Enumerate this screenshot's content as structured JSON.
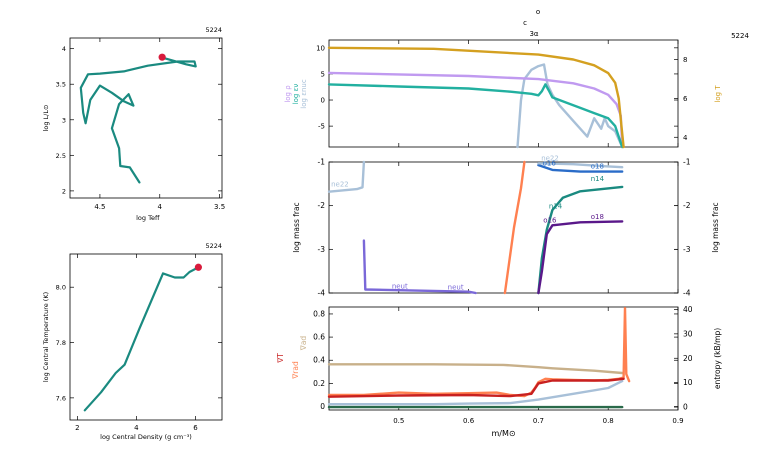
{
  "model_number": "5224",
  "header": {
    "mark_o": "o",
    "mark_c": "c",
    "mark_3a": "3α"
  },
  "colors": {
    "teal": "#1a8a80",
    "red_dot": "#d81b3c",
    "violet": "#c09af0",
    "teal_sig": "#22b0a0",
    "lightblue": "#a8c0d8",
    "gold": "#d4a020",
    "blue": "#2a6cc8",
    "purple": "#5a188a",
    "orange": "#ff8050",
    "tan": "#c8b08a",
    "medium_purple": "#7a68d8",
    "dark_green": "#2a6a4a",
    "red_label": "#c82020"
  },
  "chart_data": [
    {
      "type": "line",
      "id": "hr",
      "xlabel": "log Teff",
      "ylabel": "log L/L⊙",
      "model": "5224",
      "xlim": [
        4.75,
        3.48
      ],
      "ylim": [
        1.9,
        4.15
      ],
      "xticks": [
        {
          "v": 4.5,
          "l": "4.5"
        },
        {
          "v": 4.0,
          "l": "4"
        },
        {
          "v": 3.5,
          "l": "3.5"
        }
      ],
      "yticks": [
        {
          "v": 2,
          "l": "2"
        },
        {
          "v": 2.5,
          "l": "2.5"
        },
        {
          "v": 3,
          "l": "3"
        },
        {
          "v": 3.5,
          "l": "3.5"
        },
        {
          "v": 4,
          "l": "4"
        }
      ],
      "series": [
        {
          "color": "teal",
          "points": [
            [
              4.17,
              2.12
            ],
            [
              4.25,
              2.33
            ],
            [
              4.33,
              2.35
            ],
            [
              4.34,
              2.6
            ],
            [
              4.4,
              2.88
            ],
            [
              4.34,
              3.22
            ],
            [
              4.26,
              3.36
            ],
            [
              4.24,
              3.28
            ],
            [
              4.22,
              3.2
            ],
            [
              4.3,
              3.26
            ],
            [
              4.4,
              3.38
            ],
            [
              4.5,
              3.48
            ],
            [
              4.58,
              3.28
            ],
            [
              4.62,
              2.95
            ],
            [
              4.64,
              3.1
            ],
            [
              4.66,
              3.45
            ],
            [
              4.6,
              3.64
            ],
            [
              4.5,
              3.65
            ],
            [
              4.3,
              3.68
            ],
            [
              4.1,
              3.76
            ],
            [
              3.85,
              3.82
            ],
            [
              3.71,
              3.82
            ],
            [
              3.7,
              3.75
            ],
            [
              3.78,
              3.78
            ],
            [
              3.95,
              3.86
            ]
          ]
        }
      ],
      "marker": {
        "x": 3.98,
        "y": 3.88,
        "color": "red_dot"
      }
    },
    {
      "type": "line",
      "id": "central",
      "xlabel": "log Central Density (g cm⁻³)",
      "ylabel": "log Central Temperature (K)",
      "model": "5224",
      "xlim": [
        1.75,
        6.9
      ],
      "ylim": [
        7.52,
        8.12
      ],
      "xticks": [
        {
          "v": 2,
          "l": "2"
        },
        {
          "v": 4,
          "l": "4"
        },
        {
          "v": 6,
          "l": "6"
        }
      ],
      "yticks": [
        {
          "v": 7.6,
          "l": "7.6"
        },
        {
          "v": 7.8,
          "l": "7.8"
        },
        {
          "v": 8.0,
          "l": "8.0"
        }
      ],
      "series": [
        {
          "color": "teal",
          "points": [
            [
              2.25,
              7.555
            ],
            [
              2.8,
              7.62
            ],
            [
              3.3,
              7.69
            ],
            [
              3.6,
              7.72
            ],
            [
              4.1,
              7.85
            ],
            [
              4.9,
              8.05
            ],
            [
              5.3,
              8.035
            ],
            [
              5.6,
              8.035
            ],
            [
              5.8,
              8.055
            ],
            [
              6.1,
              8.072
            ]
          ]
        }
      ],
      "marker": {
        "x": 6.1,
        "y": 8.072,
        "color": "red_dot"
      }
    },
    {
      "type": "line",
      "id": "struct",
      "xlim": [
        0.4,
        0.9
      ],
      "ylim": [
        -9,
        11.5
      ],
      "yticks": [
        {
          "v": 10,
          "l": "10"
        },
        {
          "v": 5,
          "l": "5"
        },
        {
          "v": 0,
          "l": "0"
        },
        {
          "v": -5,
          "l": "-5"
        }
      ],
      "right_ylim": [
        3.5,
        9.0
      ],
      "right_yticks": [
        {
          "v": 8,
          "l": "8"
        },
        {
          "v": 6,
          "l": "6"
        },
        {
          "v": 4,
          "l": "4"
        }
      ],
      "left_labels": [
        {
          "text": "log ρ",
          "color": "violet"
        },
        {
          "text": "log εν",
          "color": "teal_sig"
        },
        {
          "text": "log εnuc",
          "color": "lightblue"
        }
      ],
      "right_label": {
        "text": "log T",
        "color": "gold"
      },
      "series": [
        {
          "color": "lightblue",
          "points": [
            [
              0.67,
              -9
            ],
            [
              0.675,
              0
            ],
            [
              0.68,
              4
            ],
            [
              0.69,
              5.8
            ],
            [
              0.7,
              6.5
            ],
            [
              0.708,
              6.8
            ],
            [
              0.713,
              3
            ],
            [
              0.72,
              1
            ],
            [
              0.73,
              -1
            ],
            [
              0.75,
              -4
            ],
            [
              0.77,
              -7
            ],
            [
              0.78,
              -3.5
            ],
            [
              0.79,
              -5.5
            ],
            [
              0.795,
              -3.5
            ],
            [
              0.8,
              -5
            ],
            [
              0.81,
              -6
            ],
            [
              0.82,
              -9
            ]
          ]
        },
        {
          "color": "violet",
          "points": [
            [
              0.4,
              5.2
            ],
            [
              0.6,
              4.6
            ],
            [
              0.7,
              4.0
            ],
            [
              0.75,
              3.2
            ],
            [
              0.78,
              2.2
            ],
            [
              0.8,
              1.0
            ],
            [
              0.812,
              -0.8
            ],
            [
              0.818,
              -3
            ],
            [
              0.82,
              -9
            ]
          ]
        },
        {
          "color": "teal_sig",
          "points": [
            [
              0.4,
              3.0
            ],
            [
              0.5,
              2.6
            ],
            [
              0.6,
              2.2
            ],
            [
              0.66,
              1.6
            ],
            [
              0.69,
              1.2
            ],
            [
              0.7,
              0.9
            ],
            [
              0.705,
              1.7
            ],
            [
              0.71,
              3.0
            ],
            [
              0.715,
              1.8
            ],
            [
              0.72,
              0.5
            ],
            [
              0.74,
              -0.5
            ],
            [
              0.76,
              -1.5
            ],
            [
              0.78,
              -2.5
            ],
            [
              0.8,
              -3.5
            ],
            [
              0.81,
              -5
            ],
            [
              0.815,
              -7
            ],
            [
              0.82,
              -9
            ]
          ]
        },
        {
          "color": "gold",
          "axis": "right",
          "points": [
            [
              0.4,
              8.6
            ],
            [
              0.55,
              8.55
            ],
            [
              0.7,
              8.25
            ],
            [
              0.75,
              8.0
            ],
            [
              0.78,
              7.7
            ],
            [
              0.8,
              7.3
            ],
            [
              0.81,
              6.8
            ],
            [
              0.815,
              6.0
            ],
            [
              0.82,
              4.2
            ],
            [
              0.822,
              3.5
            ]
          ]
        }
      ]
    },
    {
      "type": "line",
      "id": "abund",
      "ylabel": "log mass frac",
      "right_ylabel": "log mass frac",
      "xlim": [
        0.4,
        0.9
      ],
      "ylim": [
        -4,
        -1
      ],
      "yticks": [
        {
          "v": -1,
          "l": "-1"
        },
        {
          "v": -2,
          "l": "-2"
        },
        {
          "v": -3,
          "l": "-3"
        },
        {
          "v": -4,
          "l": "-4"
        }
      ],
      "series": [
        {
          "color": "lightblue",
          "points": [
            [
              0.4,
              -1.68
            ],
            [
              0.44,
              -1.62
            ],
            [
              0.448,
              -1.58
            ],
            [
              0.45,
              -1.0
            ]
          ]
        },
        {
          "color": "medium_purple",
          "points": [
            [
              0.45,
              -2.8
            ],
            [
              0.452,
              -3.92
            ],
            [
              0.6,
              -3.97
            ],
            [
              0.61,
              -4.0
            ]
          ]
        },
        {
          "color": "orange",
          "points": [
            [
              0.652,
              -4
            ],
            [
              0.665,
              -2.5
            ],
            [
              0.675,
              -1.6
            ],
            [
              0.68,
              -1.0
            ]
          ]
        },
        {
          "color": "teal",
          "points": [
            [
              0.7,
              -4
            ],
            [
              0.705,
              -3.2
            ],
            [
              0.712,
              -2.55
            ],
            [
              0.72,
              -2.1
            ],
            [
              0.735,
              -1.82
            ],
            [
              0.76,
              -1.67
            ],
            [
              0.82,
              -1.57
            ]
          ]
        },
        {
          "color": "purple",
          "points": [
            [
              0.7,
              -4
            ],
            [
              0.705,
              -3.5
            ],
            [
              0.712,
              -2.65
            ],
            [
              0.72,
              -2.45
            ],
            [
              0.76,
              -2.38
            ],
            [
              0.82,
              -2.36
            ]
          ]
        },
        {
          "color": "blue",
          "points": [
            [
              0.7,
              -1.07
            ],
            [
              0.72,
              -1.18
            ],
            [
              0.76,
              -1.22
            ],
            [
              0.82,
              -1.22
            ]
          ]
        },
        {
          "color": "lightblue",
          "points": [
            [
              0.7,
              -1.03
            ],
            [
              0.75,
              -1.05
            ],
            [
              0.8,
              -1.1
            ],
            [
              0.82,
              -1.12
            ]
          ]
        }
      ],
      "labels": [
        {
          "text": "ne22",
          "x": 0.403,
          "y": -1.56,
          "color": "lightblue"
        },
        {
          "text": "ne22",
          "x": 0.704,
          "y": -0.96,
          "color": "lightblue"
        },
        {
          "text": "o16",
          "x": 0.706,
          "y": -1.08,
          "color": "blue"
        },
        {
          "text": "o18",
          "x": 0.775,
          "y": -1.15,
          "color": "blue"
        },
        {
          "text": "n14",
          "x": 0.775,
          "y": -1.43,
          "color": "teal"
        },
        {
          "text": "n14",
          "x": 0.715,
          "y": -2.07,
          "color": "teal"
        },
        {
          "text": "o16",
          "x": 0.707,
          "y": -2.38,
          "color": "purple"
        },
        {
          "text": "o18",
          "x": 0.775,
          "y": -2.3,
          "color": "purple"
        },
        {
          "text": "neut",
          "x": 0.49,
          "y": -3.9,
          "color": "medium_purple"
        },
        {
          "text": "neut",
          "x": 0.57,
          "y": -3.92,
          "color": "medium_purple"
        }
      ]
    },
    {
      "type": "line",
      "id": "grad",
      "xlabel": "m/M⊙",
      "right_ylabel": "entropy (kB/mp)",
      "xlim": [
        0.4,
        0.9
      ],
      "xticks": [
        {
          "v": 0.5,
          "l": "0.5"
        },
        {
          "v": 0.6,
          "l": "0.6"
        },
        {
          "v": 0.7,
          "l": "0.7"
        },
        {
          "v": 0.8,
          "l": "0.8"
        },
        {
          "v": 0.9,
          "l": "0.9"
        }
      ],
      "ylim": [
        -0.03,
        0.86
      ],
      "yticks": [
        {
          "v": 0.8,
          "l": "0.8"
        },
        {
          "v": 0.6,
          "l": "0.6"
        },
        {
          "v": 0.4,
          "l": "0.4"
        },
        {
          "v": 0.2,
          "l": "0.2"
        },
        {
          "v": 0,
          "l": "0"
        }
      ],
      "right_ylim": [
        -1.2,
        41
      ],
      "right_yticks": [
        {
          "v": 40,
          "l": "40"
        },
        {
          "v": 30,
          "l": "30"
        },
        {
          "v": 20,
          "l": "20"
        },
        {
          "v": 10,
          "l": "10"
        },
        {
          "v": 0,
          "l": "0"
        }
      ],
      "left_labels": [
        {
          "text": "∇ad",
          "color": "tan"
        },
        {
          "text": "∇T",
          "color": "red_label"
        },
        {
          "text": "∇rad",
          "color": "orange"
        }
      ],
      "series": [
        {
          "color": "tan",
          "points": [
            [
              0.4,
              0.365
            ],
            [
              0.55,
              0.365
            ],
            [
              0.65,
              0.36
            ],
            [
              0.7,
              0.34
            ],
            [
              0.72,
              0.33
            ],
            [
              0.78,
              0.31
            ],
            [
              0.82,
              0.29
            ]
          ]
        },
        {
          "color": "dark_green",
          "points": [
            [
              0.4,
              -0.005
            ],
            [
              0.82,
              -0.005
            ]
          ]
        },
        {
          "color": "lightblue",
          "points": [
            [
              0.4,
              0.02
            ],
            [
              0.5,
              0.02
            ],
            [
              0.55,
              0.02
            ],
            [
              0.6,
              0.025
            ],
            [
              0.66,
              0.03
            ],
            [
              0.7,
              0.06
            ],
            [
              0.75,
              0.11
            ],
            [
              0.8,
              0.16
            ],
            [
              0.82,
              0.22
            ]
          ]
        },
        {
          "color": "orange",
          "points": [
            [
              0.4,
              0.1
            ],
            [
              0.45,
              0.1
            ],
            [
              0.5,
              0.12
            ],
            [
              0.55,
              0.11
            ],
            [
              0.6,
              0.115
            ],
            [
              0.64,
              0.12
            ],
            [
              0.66,
              0.1
            ],
            [
              0.68,
              0.09
            ],
            [
              0.69,
              0.12
            ],
            [
              0.695,
              0.16
            ],
            [
              0.7,
              0.21
            ],
            [
              0.71,
              0.24
            ],
            [
              0.72,
              0.235
            ],
            [
              0.75,
              0.23
            ],
            [
              0.78,
              0.225
            ],
            [
              0.8,
              0.23
            ],
            [
              0.815,
              0.24
            ],
            [
              0.822,
              0.25
            ],
            [
              0.824,
              0.85
            ],
            [
              0.826,
              0.28
            ],
            [
              0.83,
              0.22
            ]
          ]
        },
        {
          "color": "red_label",
          "points": [
            [
              0.4,
              0.085
            ],
            [
              0.5,
              0.095
            ],
            [
              0.6,
              0.1
            ],
            [
              0.66,
              0.09
            ],
            [
              0.69,
              0.11
            ],
            [
              0.7,
              0.2
            ],
            [
              0.72,
              0.225
            ],
            [
              0.8,
              0.225
            ],
            [
              0.822,
              0.24
            ]
          ]
        }
      ]
    }
  ]
}
